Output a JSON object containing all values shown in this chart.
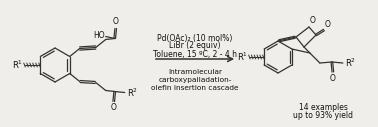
{
  "background_color": "#f0eeea",
  "text_color": "#111111",
  "condition_line1": "Pd(OAc)₂ (10 mol%)",
  "condition_line2": "LiBr (2 equiv)",
  "condition_line3": "Toluene, 15 ºC, 2 - 4 h",
  "bottom_text_line1": "Intramolecular",
  "bottom_text_line2": "carboxypalladation-",
  "bottom_text_line3": "olefin insertion cascade",
  "yield_line1": "14 examples",
  "yield_line2": "up to 93% yield",
  "line_color": "#333333",
  "font_size_conditions": 5.5,
  "font_size_bottom": 5.3,
  "font_size_yield": 5.5,
  "font_size_labels": 6.0
}
